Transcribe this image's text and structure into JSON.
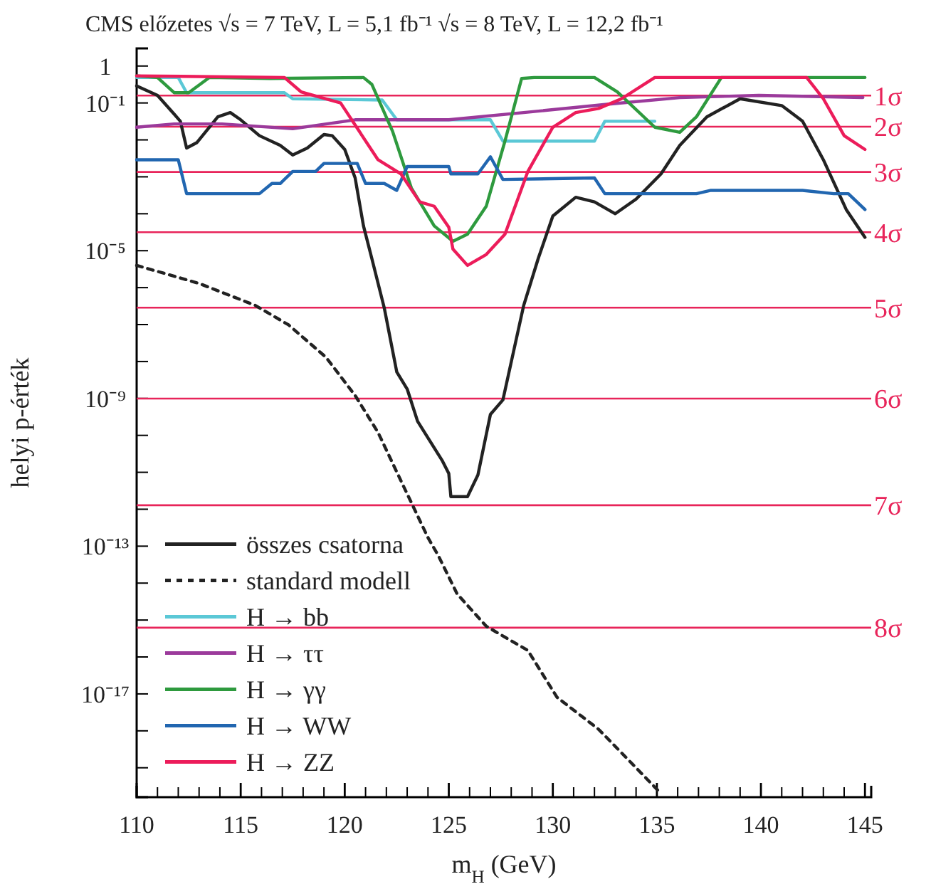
{
  "chart_data": {
    "type": "line",
    "title": "CMS előzetes   √s = 7 TeV, L = 5,1 fb⁻¹  √s = 8 TeV, L = 12,2 fb⁻¹",
    "xlabel": "m$_{H}$ (GeV)",
    "ylabel": "helyi p-érték",
    "log": "y",
    "grid": false,
    "legend": "bottom left",
    "xlim": [
      110,
      145.3
    ],
    "xticks": [
      110,
      {
        "value": 111,
        "label": null
      },
      {
        "value": 112,
        "label": null
      },
      {
        "value": 113,
        "label": null
      },
      {
        "value": 114,
        "label": null
      },
      115,
      {
        "value": 116,
        "label": null
      },
      {
        "value": 117,
        "label": null
      },
      {
        "value": 118,
        "label": null
      },
      {
        "value": 119,
        "label": null
      },
      120,
      {
        "value": 121,
        "label": null
      },
      {
        "value": 122,
        "label": null
      },
      {
        "value": 123,
        "label": null
      },
      {
        "value": 124,
        "label": null
      },
      125,
      {
        "value": 126,
        "label": null
      },
      {
        "value": 127,
        "label": null
      },
      {
        "value": 128,
        "label": null
      },
      {
        "value": 129,
        "label": null
      },
      130,
      {
        "value": 131,
        "label": null
      },
      {
        "value": 132,
        "label": null
      },
      {
        "value": 133,
        "label": null
      },
      {
        "value": 134,
        "label": null
      },
      135,
      {
        "value": 136,
        "label": null
      },
      {
        "value": 137,
        "label": null
      },
      {
        "value": 138,
        "label": null
      },
      {
        "value": 139,
        "label": null
      },
      140,
      {
        "value": 141,
        "label": null
      },
      {
        "value": 142,
        "label": null
      },
      {
        "value": 143,
        "label": null
      },
      {
        "value": 144,
        "label": null
      },
      145
    ],
    "ylim": [
      1.6e-20,
      3
    ],
    "yticks": [
      1,
      {
        "value": 0.1,
        "label": "10⁻¹"
      },
      {
        "value": 0.01,
        "label": null
      },
      {
        "value": 0.001,
        "label": null
      },
      {
        "value": 0.0001,
        "label": null
      },
      {
        "value": 1e-05,
        "label": "10⁻⁵"
      },
      {
        "value": 1e-06,
        "label": null
      },
      {
        "value": 1e-07,
        "label": null
      },
      {
        "value": 1e-08,
        "label": null
      },
      {
        "value": 1e-09,
        "label": "10⁻⁹"
      },
      {
        "value": 1e-10,
        "label": null
      },
      {
        "value": 1e-11,
        "label": null
      },
      {
        "value": 1e-12,
        "label": null
      },
      {
        "value": 1e-13,
        "label": "10⁻¹³"
      },
      {
        "value": 1e-14,
        "label": null
      },
      {
        "value": 1e-15,
        "label": null
      },
      {
        "value": 1e-16,
        "label": null
      },
      {
        "value": 1e-17,
        "label": "10⁻¹⁷"
      },
      {
        "value": 1e-18,
        "label": null
      },
      {
        "value": 1e-19,
        "label": null
      }
    ],
    "ref_lines": [
      {
        "axis": "y",
        "value": 0.1587,
        "label": "1σ",
        "color": "#e8245a"
      },
      {
        "axis": "y",
        "value": 0.02275,
        "label": "2σ",
        "color": "#e8245a"
      },
      {
        "axis": "y",
        "value": 0.00135,
        "label": "3σ",
        "color": "#e8245a"
      },
      {
        "axis": "y",
        "value": 3.17e-05,
        "label": "4σ",
        "color": "#e8245a"
      },
      {
        "axis": "y",
        "value": 2.87e-07,
        "label": "5σ",
        "color": "#e8245a"
      },
      {
        "axis": "y",
        "value": 9.9e-10,
        "label": "6σ",
        "color": "#e8245a"
      },
      {
        "axis": "y",
        "value": 1.28e-12,
        "label": "7σ",
        "color": "#e8245a"
      },
      {
        "axis": "y",
        "value": 6.2e-16,
        "label": "8σ",
        "color": "#e8245a"
      }
    ],
    "series": [
      {
        "name": "összes csatorna",
        "color": "#222222",
        "line_style": "solid",
        "x": [
          110,
          111.0,
          111.8,
          112.1,
          112.4,
          112.9,
          113.9,
          114.5,
          115.0,
          115.9,
          116.9,
          117.5,
          118.2,
          119.0,
          119.4,
          120.0,
          120.5,
          120.9,
          121.3,
          121.9,
          122.5,
          123.0,
          123.5,
          124.7,
          125.0,
          125.1,
          125.5,
          125.9,
          126.4,
          127.0,
          127.6,
          128.6,
          129.3,
          130.0,
          131.1,
          132.0,
          133.0,
          134.0,
          135.2,
          136.1,
          137.4,
          139.0,
          141.0,
          142.0,
          143.0,
          144.1,
          145
        ],
        "values": [
          0.29,
          0.16,
          0.05,
          0.032,
          0.006,
          0.0085,
          0.042,
          0.055,
          0.035,
          0.013,
          0.0071,
          0.0039,
          0.006,
          0.014,
          0.013,
          0.0055,
          0.00093,
          4.7e-05,
          6.2e-06,
          2.8e-07,
          5.2e-09,
          1.8e-09,
          2.4e-10,
          2e-11,
          9.3e-12,
          2.2e-12,
          2.2e-12,
          2.2e-12,
          8.5e-12,
          3.7e-10,
          9.1e-10,
          3.3e-07,
          6.2e-06,
          8.7e-05,
          0.00028,
          0.00021,
          0.0001,
          0.00025,
          0.0012,
          0.0071,
          0.042,
          0.13,
          0.085,
          0.032,
          0.0029,
          0.00013,
          2.3e-05
        ]
      },
      {
        "name": "standard modell",
        "color": "#222222",
        "line_style": "dashed",
        "x": [
          110,
          113.0,
          115.7,
          117.3,
          119.1,
          120.5,
          121.6,
          122.7,
          124.0,
          124.5,
          125.4,
          126.8,
          128.8,
          130.2,
          132.2,
          134.0,
          135.2
        ],
        "values": [
          4e-06,
          1.3e-06,
          3.3e-07,
          9.8e-08,
          1.3e-08,
          1.2e-09,
          1.2e-10,
          5.9e-12,
          1.7e-13,
          5.5e-14,
          5.1e-15,
          6.8e-16,
          1.5e-16,
          8.1e-18,
          1.1e-18,
          1e-19,
          2e-20
        ]
      },
      {
        "name": "H → bb",
        "color": "#5bc8d6",
        "line_style": "solid",
        "x": [
          110,
          112.0,
          112.4,
          117.1,
          117.5,
          121.8,
          122.5,
          127.0,
          127.6,
          132.0,
          132.5,
          134.9
        ],
        "values": [
          0.49,
          0.49,
          0.19,
          0.19,
          0.13,
          0.12,
          0.035,
          0.035,
          0.0093,
          0.0093,
          0.032,
          0.032
        ]
      },
      {
        "name": "H → ττ",
        "color": "#9b3a9b",
        "line_style": "solid",
        "x": [
          110,
          111.8,
          114.1,
          117.5,
          120.5,
          125.0,
          128.6,
          132.7,
          136.1,
          139.9,
          144.9
        ],
        "values": [
          0.022,
          0.027,
          0.027,
          0.02,
          0.035,
          0.035,
          0.055,
          0.093,
          0.14,
          0.16,
          0.14
        ]
      },
      {
        "name": "H → γγ",
        "color": "#2e9a3e",
        "line_style": "solid",
        "x": [
          110,
          111.0,
          111.8,
          112.5,
          113.5,
          116.4,
          120.9,
          121.3,
          122.3,
          123.2,
          124.3,
          125.2,
          125.9,
          126.8,
          127.7,
          128.5,
          129.1,
          132.0,
          133.1,
          134.9,
          136.1,
          136.9,
          138.1,
          142.2,
          145
        ],
        "values": [
          0.54,
          0.49,
          0.19,
          0.19,
          0.49,
          0.46,
          0.49,
          0.32,
          0.017,
          0.0005,
          4.7e-05,
          1.8e-05,
          2.8e-05,
          0.00016,
          0.0093,
          0.46,
          0.49,
          0.49,
          0.2,
          0.022,
          0.016,
          0.042,
          0.49,
          0.49,
          0.49
        ]
      },
      {
        "name": "H → WW",
        "color": "#2166b0",
        "line_style": "solid",
        "x": [
          110,
          112.0,
          112.4,
          115.9,
          116.5,
          116.9,
          117.5,
          118.6,
          119.0,
          120.6,
          121.0,
          121.9,
          122.5,
          123.0,
          125.0,
          125.1,
          126.4,
          127.0,
          127.6,
          132.0,
          132.5,
          136.9,
          137.6,
          142.0,
          143.5,
          144.2,
          145
        ],
        "values": [
          0.0029,
          0.0029,
          0.00035,
          0.00035,
          0.00066,
          0.00066,
          0.0014,
          0.0014,
          0.0023,
          0.0023,
          0.00066,
          0.00066,
          0.00043,
          0.0019,
          0.0019,
          0.0012,
          0.0012,
          0.0035,
          0.00085,
          0.00093,
          0.00035,
          0.00035,
          0.00043,
          0.00043,
          0.00035,
          0.00035,
          0.00013
        ]
      },
      {
        "name": "H → ZZ",
        "color": "#ec1c5a",
        "line_style": "solid",
        "x": [
          110,
          117.1,
          117.9,
          119.8,
          120.7,
          121.6,
          122.7,
          123.6,
          124.3,
          125.0,
          125.2,
          125.9,
          126.8,
          127.7,
          128.8,
          130.0,
          131.1,
          132.2,
          133.3,
          134.9,
          142.2,
          143.0,
          144.0,
          145
        ],
        "values": [
          0.54,
          0.49,
          0.2,
          0.1,
          0.017,
          0.0029,
          0.0012,
          0.00021,
          0.00016,
          4.3e-05,
          1.1e-05,
          4e-06,
          7.9e-06,
          2.8e-05,
          0.0014,
          0.022,
          0.055,
          0.071,
          0.13,
          0.49,
          0.49,
          0.13,
          0.013,
          0.0055
        ]
      }
    ]
  }
}
